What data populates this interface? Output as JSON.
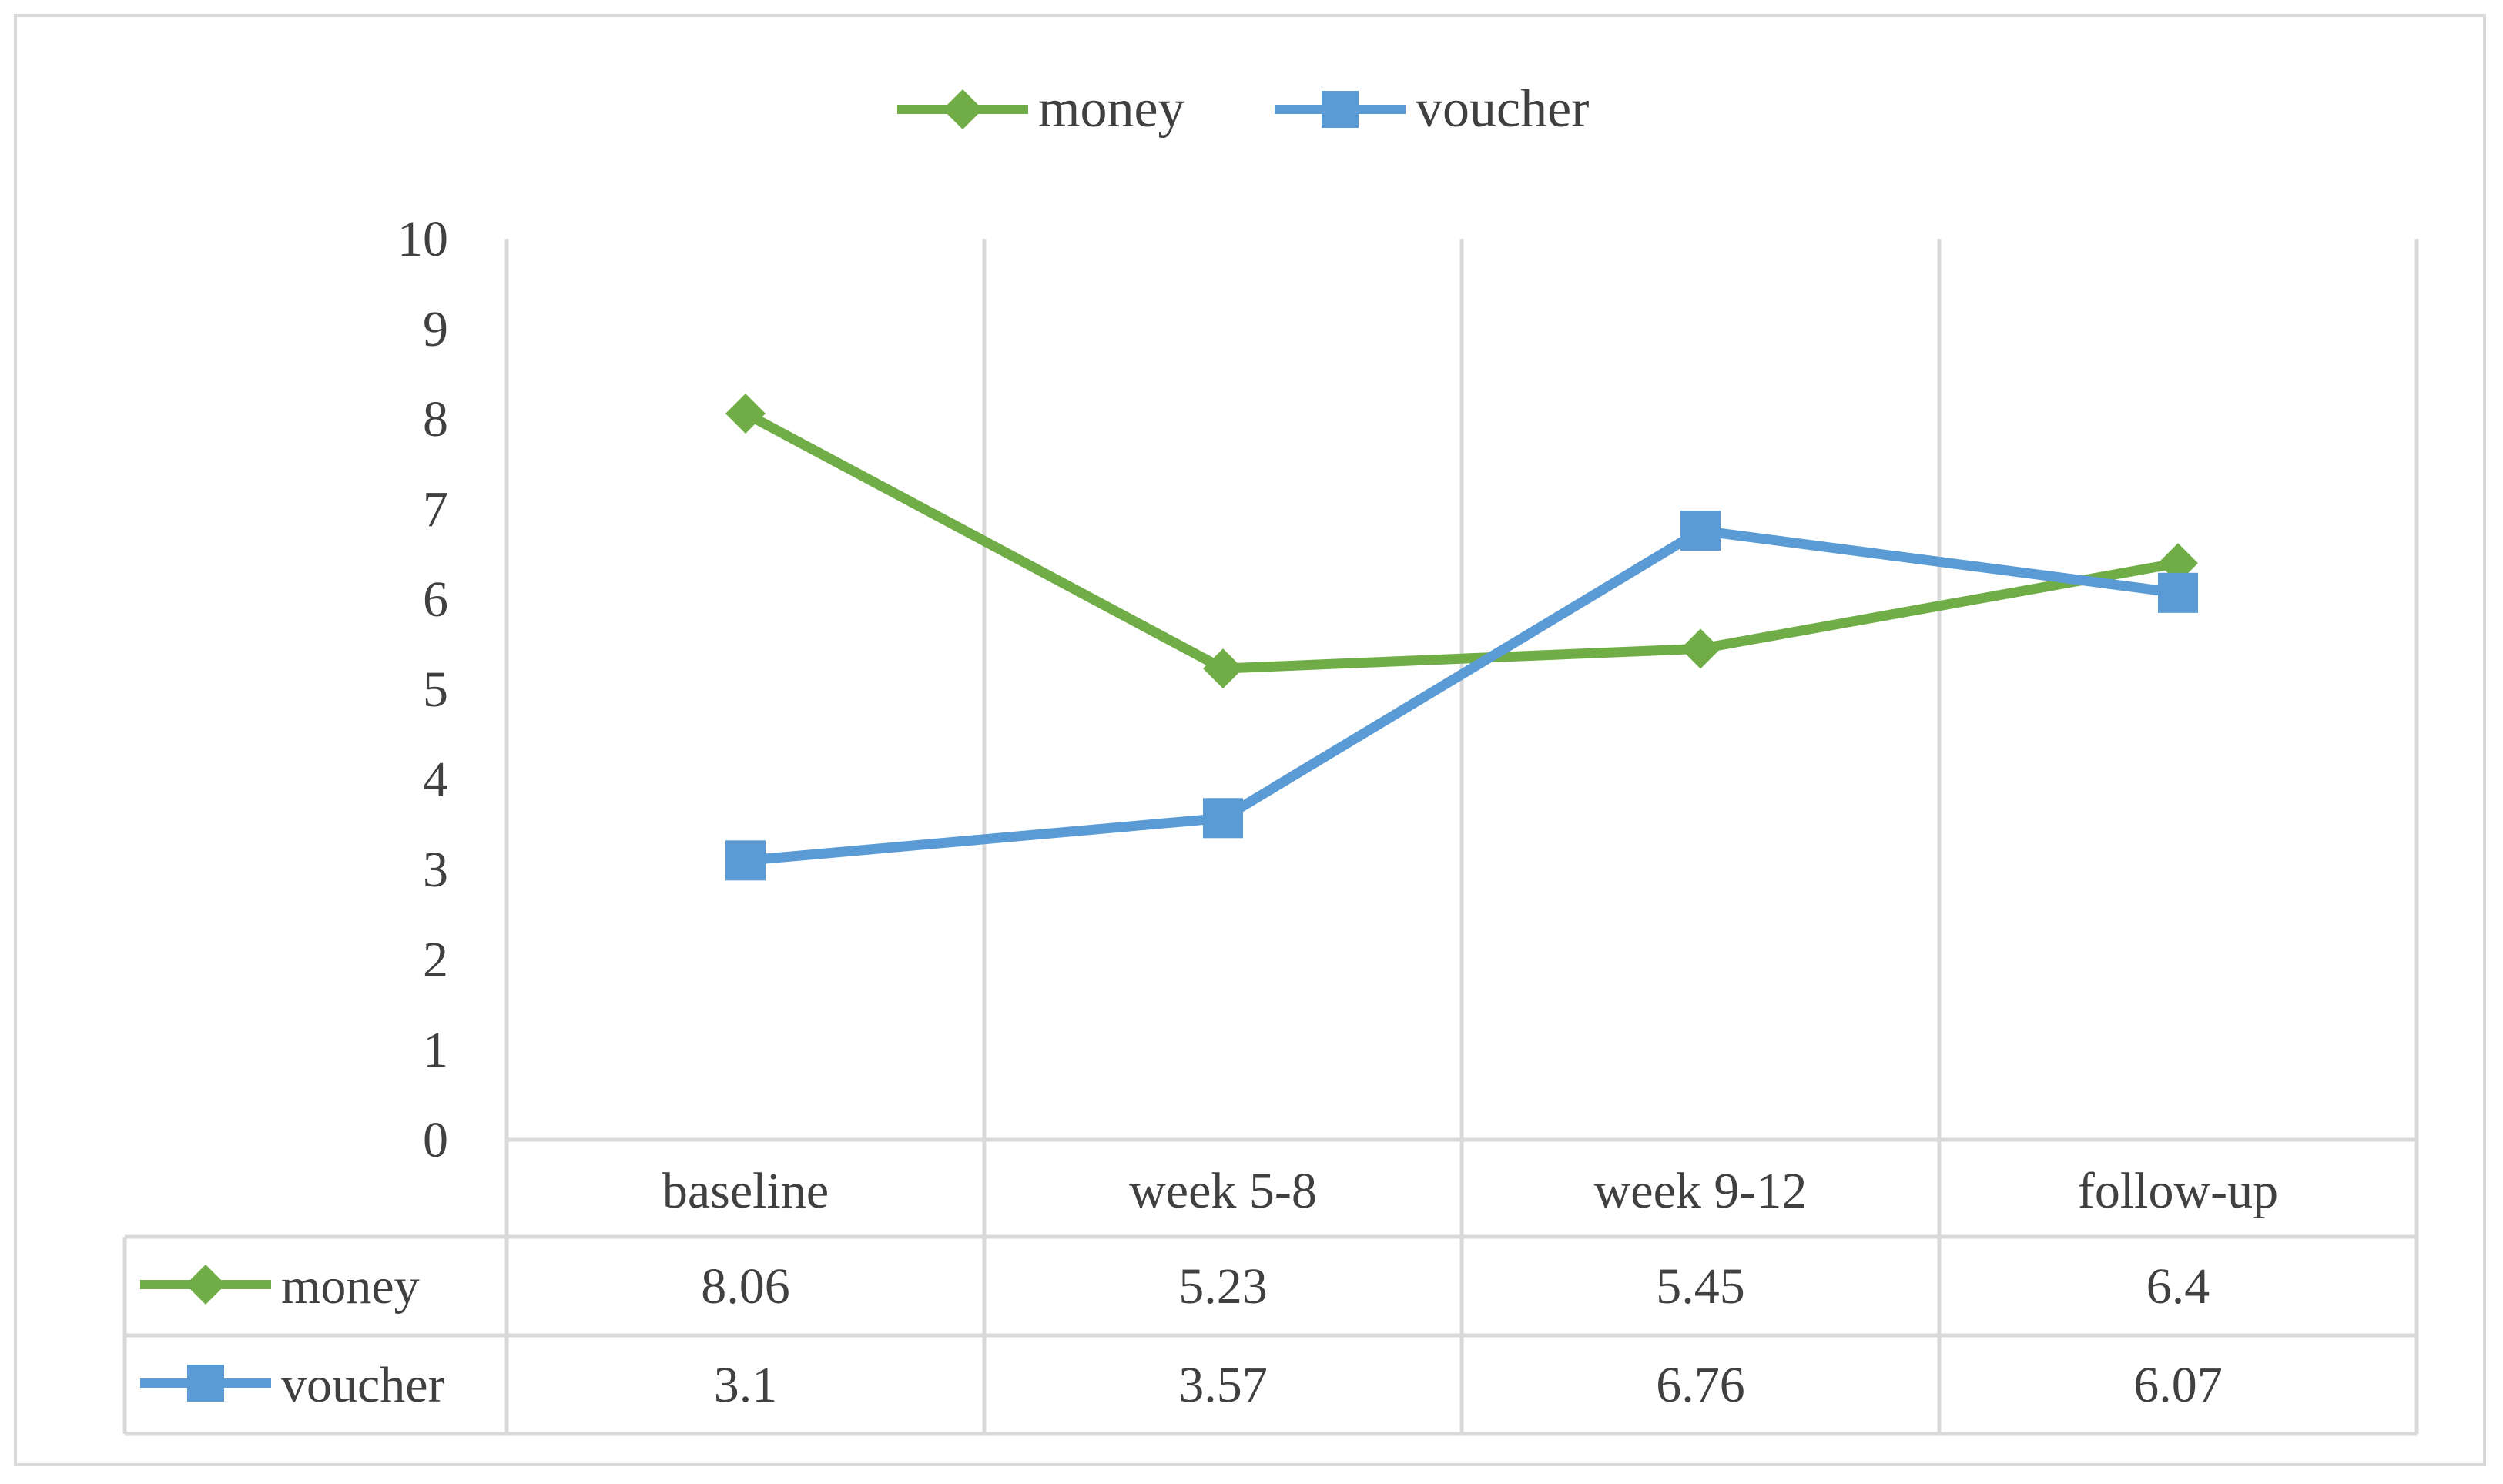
{
  "chart_data": {
    "type": "line",
    "categories": [
      "baseline",
      "week 5-8",
      "week 9-12",
      "follow-up"
    ],
    "series": [
      {
        "name": "money",
        "values": [
          8.06,
          5.23,
          5.45,
          6.4
        ],
        "color": "#70ad47",
        "marker": "diamond",
        "labels": [
          "8.06",
          "5.23",
          "5.45",
          "6.4"
        ]
      },
      {
        "name": "voucher",
        "values": [
          3.1,
          3.57,
          6.76,
          6.07
        ],
        "color": "#5b9bd5",
        "marker": "square",
        "labels": [
          "3.1",
          "3.57",
          "6.76",
          "6.07"
        ]
      }
    ],
    "ylim": [
      0,
      10
    ],
    "yticks": [
      "0",
      "1",
      "2",
      "3",
      "4",
      "5",
      "6",
      "7",
      "8",
      "9",
      "10"
    ],
    "grid": "vertical",
    "legend": "top-center",
    "data_table": true,
    "title": "",
    "xlabel": "",
    "ylabel": ""
  }
}
